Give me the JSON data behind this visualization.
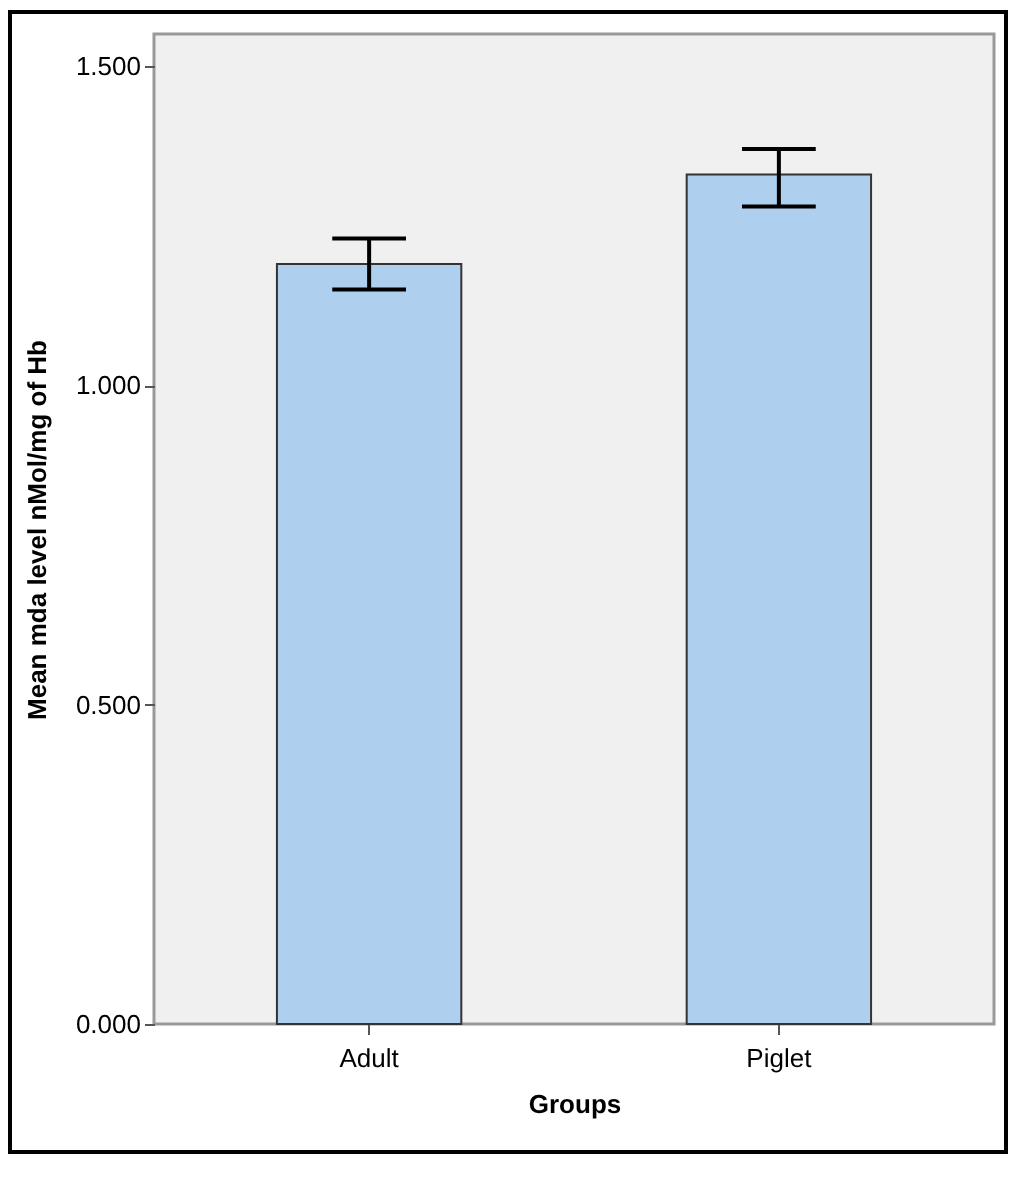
{
  "chart_data": {
    "type": "bar",
    "xlabel": "Groups",
    "ylabel": "Mean mda level nMol/mg of Hb",
    "categories": [
      "Adult",
      "Piglet"
    ],
    "values": [
      1.19,
      1.33
    ],
    "errors": [
      [
        1.15,
        1.23
      ],
      [
        1.28,
        1.37
      ]
    ],
    "color": "#aecfee",
    "ylim": [
      0,
      1.55
    ],
    "yticks": [
      {
        "value": 0,
        "label": "0.000"
      },
      {
        "value": 0.5,
        "label": "0.500"
      },
      {
        "value": 1,
        "label": "1.000"
      },
      {
        "value": 1.5,
        "label": "1.500"
      }
    ],
    "grid": false
  }
}
